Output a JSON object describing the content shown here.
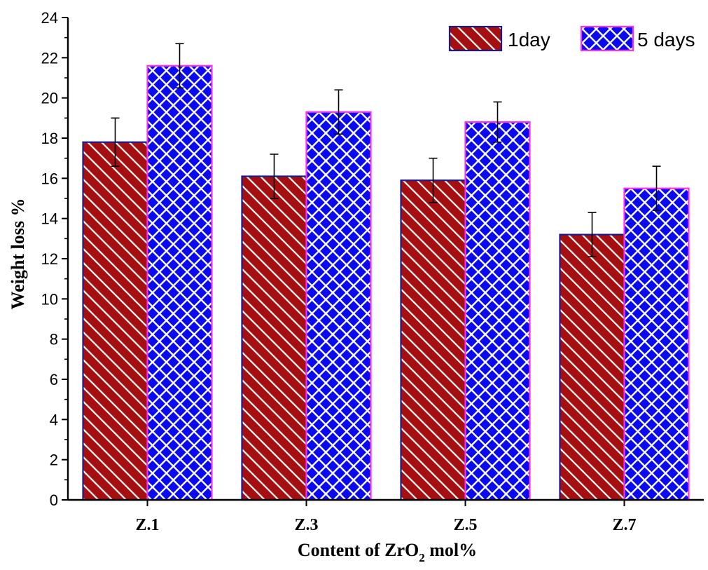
{
  "chart_data": {
    "type": "bar",
    "title": "",
    "xlabel": "Content of  ZrO",
    "xlabel_sub": "2",
    "xlabel_tail": " mol%",
    "ylabel": "Weight loss %",
    "categories": [
      "Z.1",
      "Z.3",
      "Z.5",
      "Z.7"
    ],
    "ylim": [
      0,
      24
    ],
    "yticks": [
      0,
      2,
      4,
      6,
      8,
      10,
      12,
      14,
      16,
      18,
      20,
      22,
      24
    ],
    "grid": false,
    "legend_position": "top-right",
    "series": [
      {
        "name": "1day",
        "values": [
          17.8,
          16.1,
          15.9,
          13.2
        ],
        "errors": [
          1.2,
          1.1,
          1.1,
          1.1
        ],
        "fill": "#a50f0f",
        "border": "#1a1a8c",
        "pattern": "diagonal-hatch"
      },
      {
        "name": "5 days",
        "values": [
          21.6,
          19.3,
          18.8,
          15.5
        ],
        "errors": [
          1.1,
          1.1,
          1.0,
          1.1
        ],
        "fill": "#0a0af0",
        "border": "#ff2ef0",
        "pattern": "cross-hatch"
      }
    ]
  }
}
